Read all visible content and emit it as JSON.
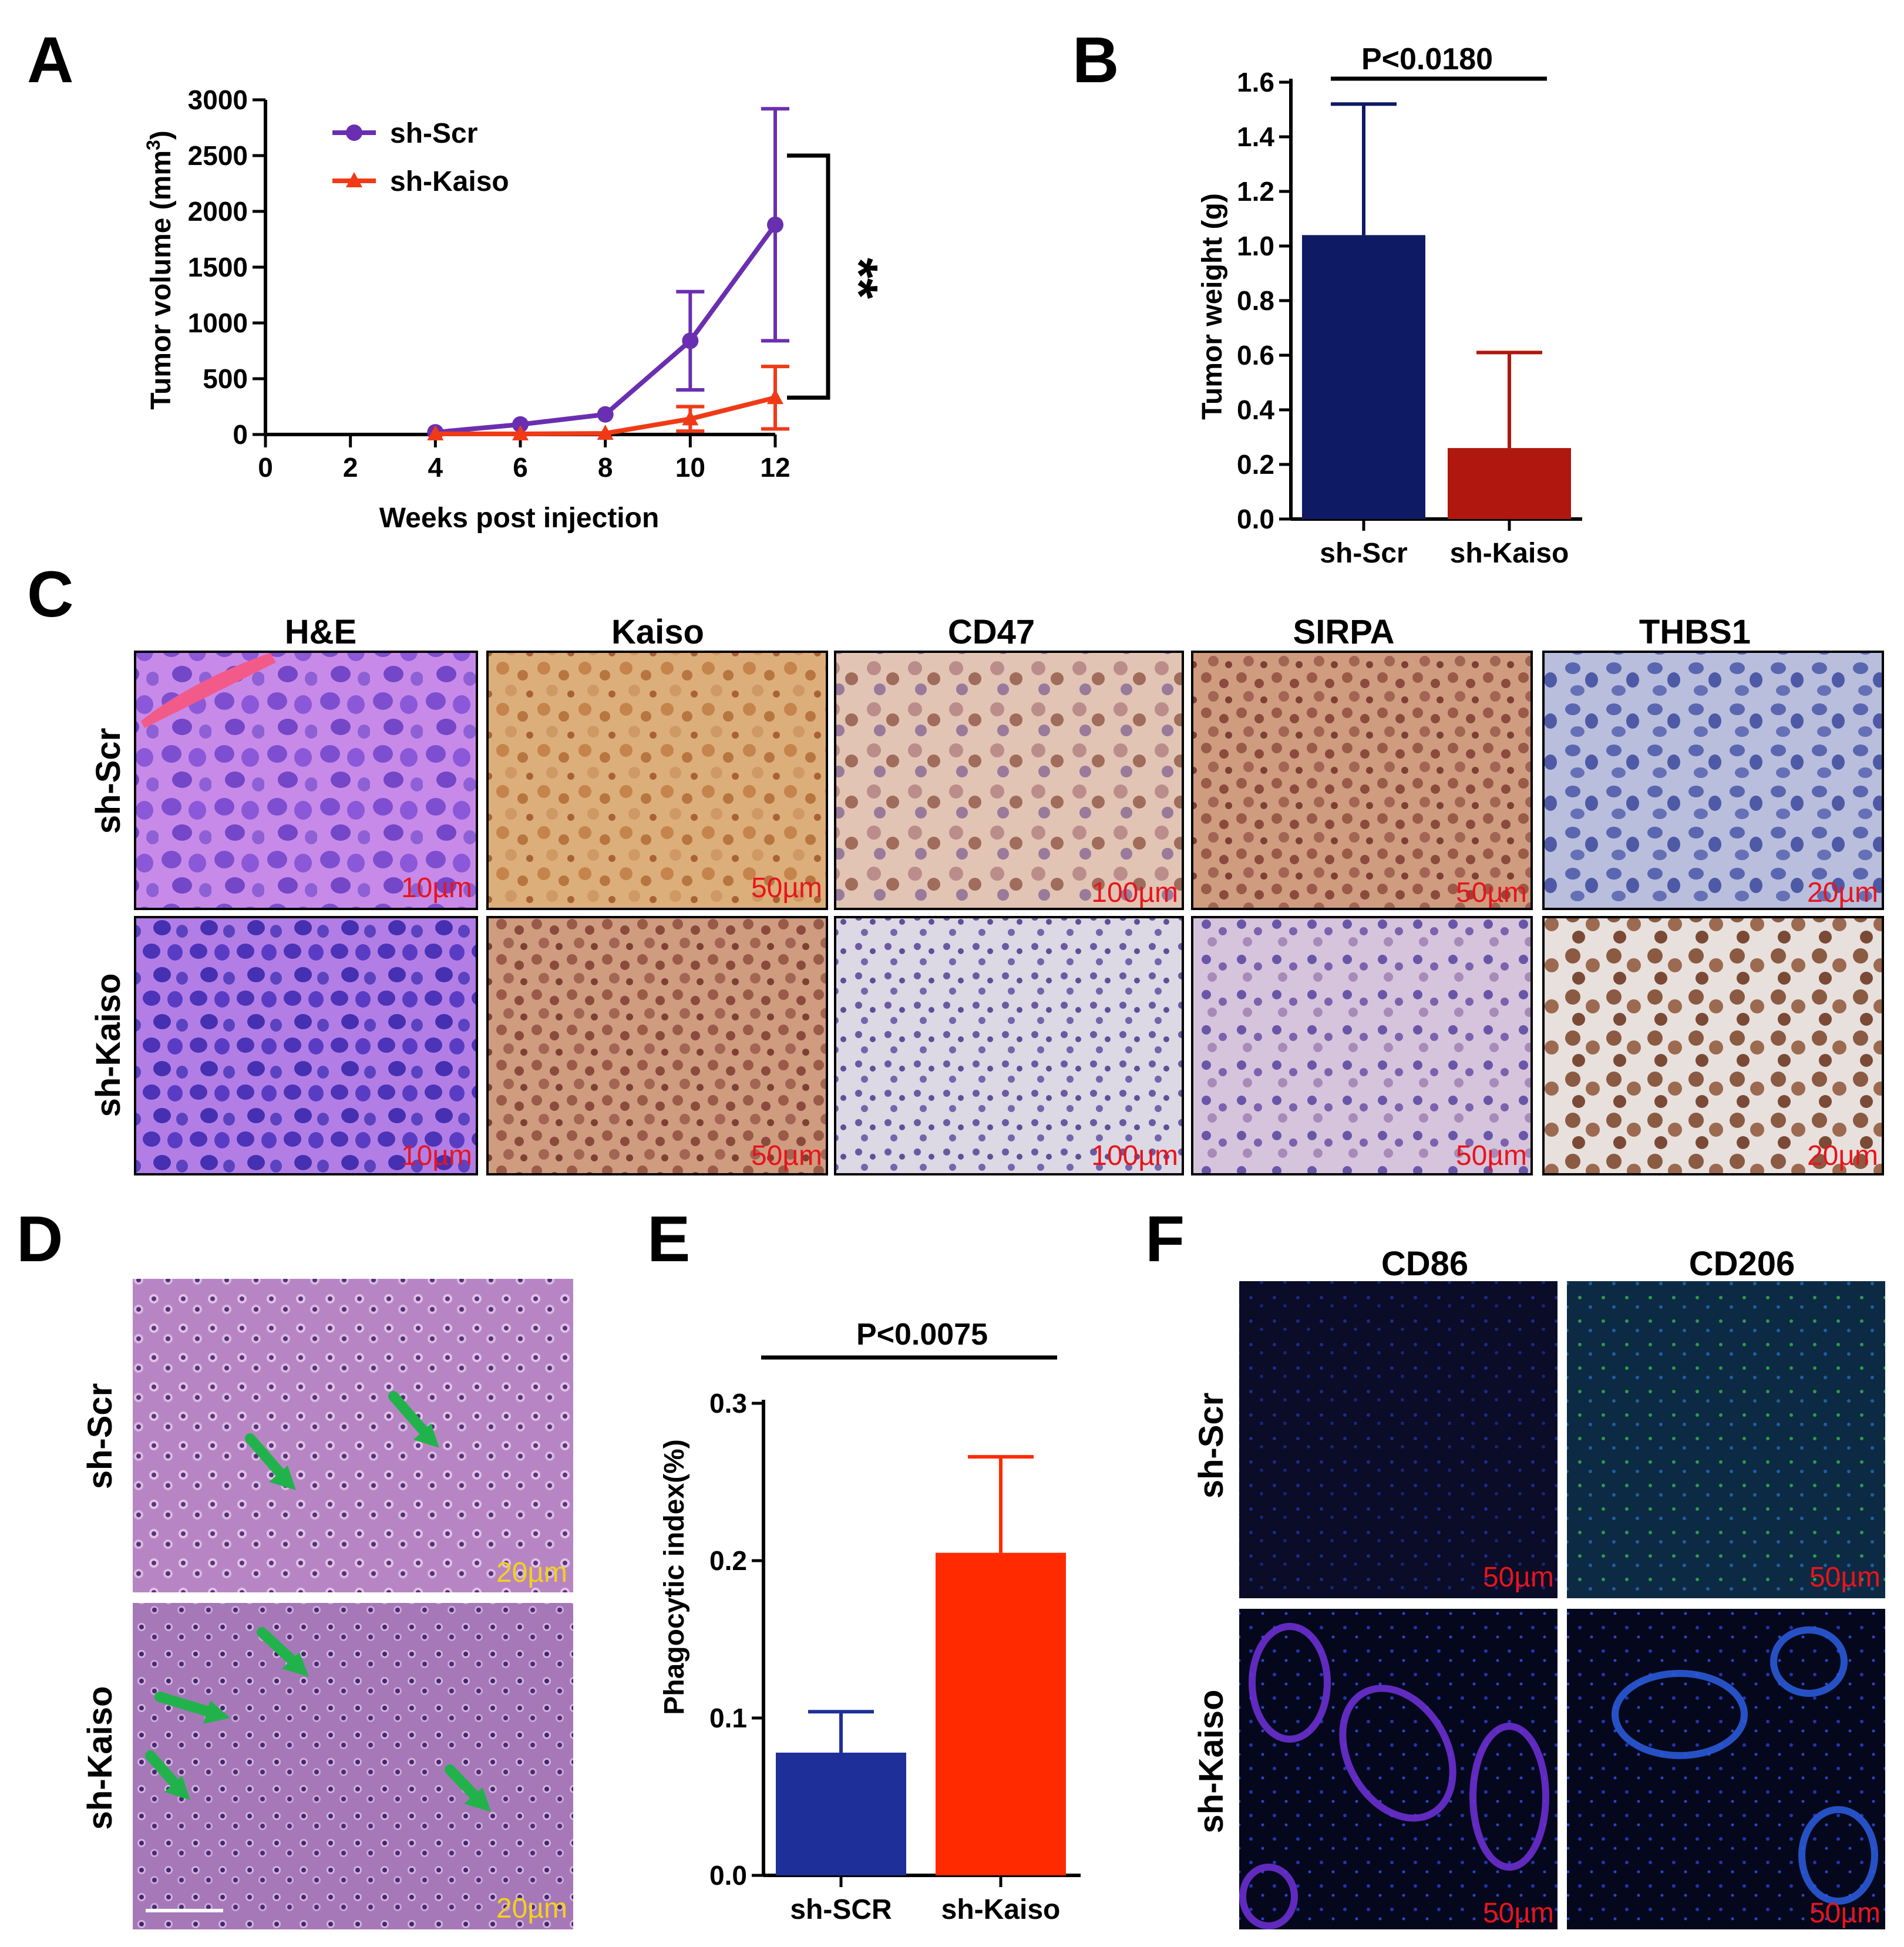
{
  "panels": {
    "A": "A",
    "B": "B",
    "C": "C",
    "D": "D",
    "E": "E",
    "F": "F"
  },
  "chart_data": [
    {
      "type": "line",
      "panel": "A",
      "xlabel": "Weeks post injection",
      "ylabel": "Tumor volume (mm3)",
      "ylabel_main": "Tumor volume (mm",
      "ylabel_sup": "3",
      "ylabel_end": ")",
      "xlim": [
        0,
        12
      ],
      "ylim": [
        0,
        3000
      ],
      "xticks": [
        "0",
        "2",
        "4",
        "6",
        "8",
        "10",
        "12"
      ],
      "yticks": [
        "0",
        "500",
        "1000",
        "1500",
        "2000",
        "2500",
        "3000"
      ],
      "legend_position": "top-left",
      "series": [
        {
          "name": "sh-Scr",
          "color": "#6a2fb0",
          "marker": "circle",
          "x": [
            4,
            6,
            8,
            10,
            12
          ],
          "y": [
            20,
            90,
            180,
            840,
            1880
          ],
          "err": [
            0,
            0,
            0,
            440,
            1040
          ]
        },
        {
          "name": "sh-Kaiso",
          "color": "#f03a17",
          "marker": "triangle",
          "x": [
            4,
            6,
            8,
            10,
            12
          ],
          "y": [
            5,
            5,
            10,
            140,
            330
          ],
          "err": [
            0,
            0,
            0,
            110,
            280
          ]
        }
      ],
      "annotation": "**"
    },
    {
      "type": "bar",
      "panel": "B",
      "categories": [
        "sh-Scr",
        "sh-Kaiso"
      ],
      "values": [
        1.04,
        0.26
      ],
      "errors": [
        0.48,
        0.35
      ],
      "colors": [
        "#0f1a64",
        "#b0170e"
      ],
      "ylabel": "Tumor weight (g)",
      "ylim": [
        0,
        1.6
      ],
      "yticks": [
        "0.0",
        "0.2",
        "0.4",
        "0.6",
        "0.8",
        "1.0",
        "1.2",
        "1.4",
        "1.6"
      ],
      "annotation": "P<0.0180"
    },
    {
      "type": "bar",
      "panel": "E",
      "categories": [
        "sh-SCR",
        "sh-Kaiso"
      ],
      "values": [
        0.078,
        0.205
      ],
      "errors": [
        0.026,
        0.061
      ],
      "colors": [
        "#1f2f9a",
        "#ff2a00"
      ],
      "ylabel": "Phagocytic index(%)",
      "ylim": [
        0,
        0.3
      ],
      "yticks": [
        "0.0",
        "0.1",
        "0.2",
        "0.3"
      ],
      "annotation": "P<0.0075"
    }
  ],
  "panel_c": {
    "columns": [
      "H&E",
      "Kaiso",
      "CD47",
      "SIRPA",
      "THBS1"
    ],
    "rows": [
      "sh-Scr",
      "sh-Kaiso"
    ],
    "scale_bars": [
      [
        "10µm",
        "50µm",
        "100µm",
        "50µm",
        "20µm"
      ],
      [
        "10µm",
        "50µm",
        "100µm",
        "50µm",
        "20µm"
      ]
    ],
    "scale_color": "#e8141c"
  },
  "panel_d": {
    "rows": [
      "sh-Scr",
      "sh-Kaiso"
    ],
    "scale_bars": [
      "20µm",
      "20µm"
    ],
    "scale_color": "#f2d21b",
    "arrow_color": "#22b24c"
  },
  "panel_f": {
    "columns": [
      "CD86",
      "CD206"
    ],
    "rows": [
      "sh-Scr",
      "sh-Kaiso"
    ],
    "scale_bars": [
      [
        "50µm",
        "50µm"
      ],
      [
        "50µm",
        "50µm"
      ]
    ],
    "scale_color": "#e8141c"
  }
}
